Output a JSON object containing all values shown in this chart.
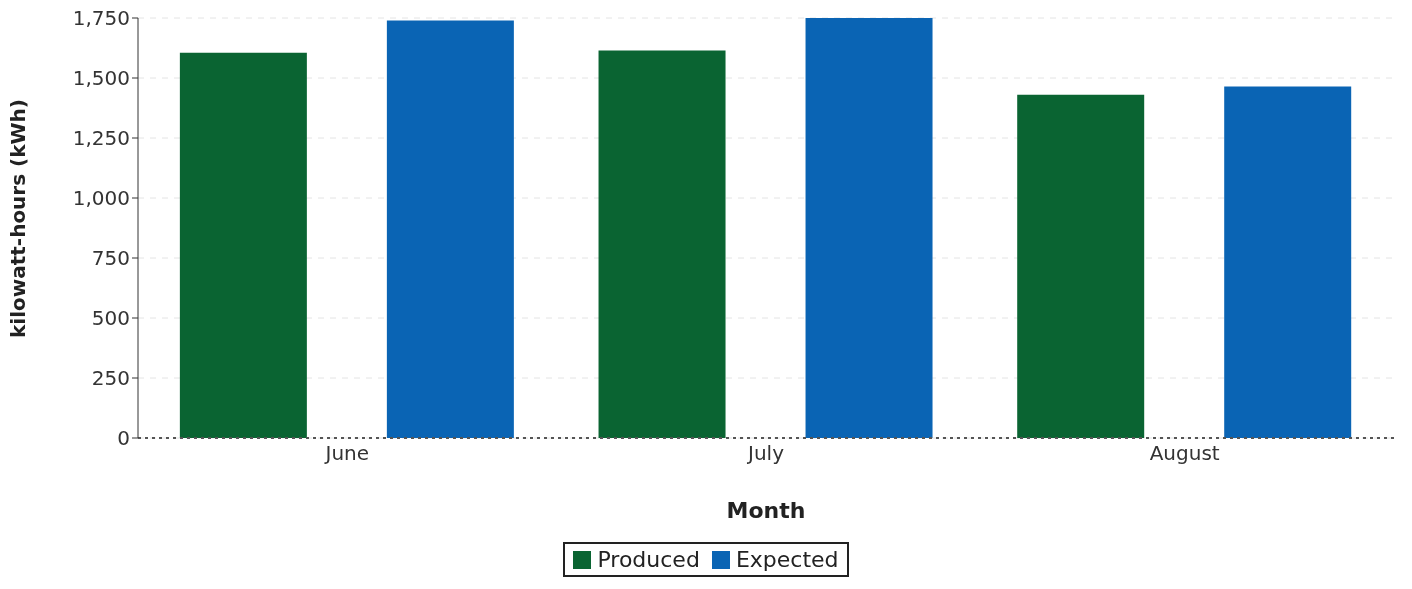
{
  "chart_data": {
    "type": "bar",
    "xlabel": "Month",
    "ylabel": "kilowatt-hours (kWh)",
    "categories": [
      "June",
      "July",
      "August"
    ],
    "series": [
      {
        "name": "Produced",
        "color": "#0a6432",
        "values": [
          1605,
          1615,
          1430
        ]
      },
      {
        "name": "Expected",
        "color": "#0a64b4",
        "values": [
          1740,
          1750,
          1465
        ]
      }
    ],
    "ylim": [
      0,
      1750
    ],
    "yticks": [
      0,
      250,
      500,
      750,
      {
        "value": 1000,
        "label": "1,000"
      },
      {
        "value": 1250,
        "label": "1,250"
      },
      {
        "value": 1500,
        "label": "1,500"
      },
      {
        "value": 1750,
        "label": "1,750"
      }
    ],
    "grid": "y",
    "legend": "bottom"
  }
}
